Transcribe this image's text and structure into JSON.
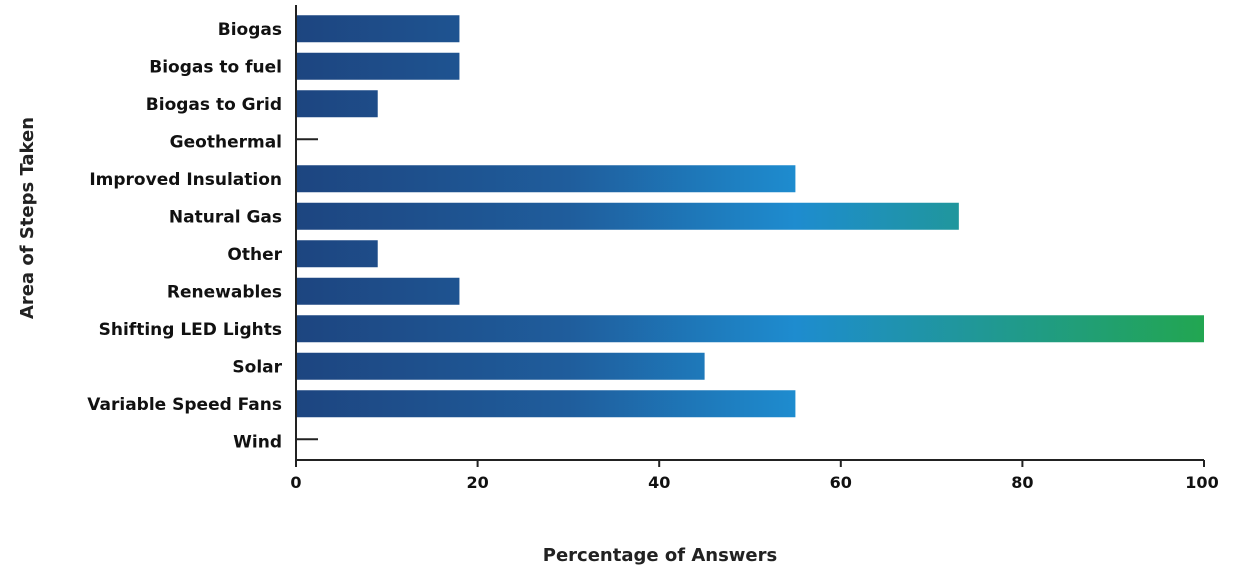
{
  "chart_data": {
    "type": "bar",
    "orientation": "horizontal",
    "categories": [
      "Biogas",
      "Biogas to fuel",
      "Biogas to Grid",
      "Geothermal",
      "Improved Insulation",
      "Natural Gas",
      "Other",
      "Renewables",
      "Shifting LED Lights",
      "Solar",
      "Variable Speed Fans",
      "Wind"
    ],
    "values": [
      18,
      18,
      9,
      0,
      55,
      73,
      9,
      18,
      100,
      45,
      55,
      0
    ],
    "xlabel": "Percentage of Answers",
    "ylabel": "Area of Steps Taken",
    "xlim": [
      0,
      100
    ],
    "xticks": [
      0,
      20,
      40,
      60,
      80,
      100
    ],
    "grid": false,
    "colors": {
      "gradient_start": "#1d4580",
      "gradient_mid": "#1e8ccf",
      "gradient_end": "#22a651"
    }
  }
}
